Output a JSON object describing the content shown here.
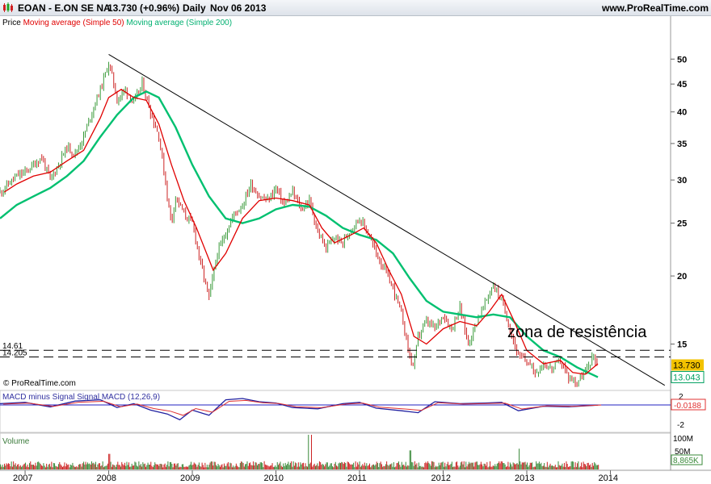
{
  "header": {
    "symbol": "EOAN - E.ON SE NA",
    "quote": "13.730 (+0.96%)",
    "period": "Daily",
    "date": "Nov 06 2013",
    "site": "www.ProRealTime.com"
  },
  "legend": {
    "price": "Price",
    "ma50": "Moving average (Simple 50)",
    "ma200": "Moving average (Simple 200)"
  },
  "colors": {
    "ma50": "#e00000",
    "ma200": "#00c070",
    "candle_up": "#3a9a3a",
    "candle_down": "#cc2222",
    "macd": "#2020a0",
    "macd_signal": "#e03030",
    "volume": "#3a8a3a",
    "last_price_bg": "#f2c200",
    "ma200_box": "#00a060"
  },
  "copyright": "© ProRealTime.com",
  "annotation": "zona de resistência",
  "macd_panel": {
    "label": "MACD minus Signal Signal MACD (12,26,9)",
    "value": "-0.0188",
    "ticks": [
      "2",
      "-2"
    ]
  },
  "volume_panel": {
    "label": "Volume",
    "ticks": [
      "100M",
      "50M"
    ],
    "value": "8,865K"
  },
  "chart_data": {
    "type": "candlestick",
    "y_scale": "log",
    "ylim": [
      12.5,
      56
    ],
    "price_ticks": [
      50,
      45,
      40,
      35,
      30,
      25,
      20,
      15
    ],
    "x_ticks": [
      "2007",
      "2008",
      "2009",
      "2010",
      "2011",
      "2012",
      "2013",
      "2014"
    ],
    "last_price": "13.730",
    "ma200_last": "13.043",
    "horizontal_levels": [
      {
        "label": "14.61",
        "value": 14.61
      },
      {
        "label": "14.205",
        "value": 14.205
      }
    ],
    "trendline": {
      "from": {
        "x": 2008.0,
        "y": 51
      },
      "to": {
        "x": 2014.65,
        "y": 12.6
      }
    },
    "price_points": [
      [
        2006.7,
        28.5
      ],
      [
        2006.8,
        29.5
      ],
      [
        2006.9,
        30.5
      ],
      [
        2007.0,
        31
      ],
      [
        2007.1,
        32
      ],
      [
        2007.2,
        33
      ],
      [
        2007.3,
        30
      ],
      [
        2007.4,
        32
      ],
      [
        2007.5,
        34.5
      ],
      [
        2007.6,
        33.5
      ],
      [
        2007.7,
        36
      ],
      [
        2007.8,
        40
      ],
      [
        2007.9,
        44
      ],
      [
        2008.0,
        49
      ],
      [
        2008.05,
        46
      ],
      [
        2008.1,
        42
      ],
      [
        2008.2,
        44
      ],
      [
        2008.3,
        41.5
      ],
      [
        2008.4,
        45
      ],
      [
        2008.5,
        40
      ],
      [
        2008.6,
        36
      ],
      [
        2008.7,
        28
      ],
      [
        2008.75,
        25
      ],
      [
        2008.8,
        28
      ],
      [
        2008.9,
        26
      ],
      [
        2009.0,
        25
      ],
      [
        2009.1,
        21
      ],
      [
        2009.2,
        18.2
      ],
      [
        2009.3,
        22
      ],
      [
        2009.4,
        24
      ],
      [
        2009.5,
        26
      ],
      [
        2009.6,
        27
      ],
      [
        2009.7,
        29.5
      ],
      [
        2009.8,
        28
      ],
      [
        2009.9,
        27.5
      ],
      [
        2010.0,
        29
      ],
      [
        2010.1,
        27
      ],
      [
        2010.2,
        28.5
      ],
      [
        2010.3,
        26.5
      ],
      [
        2010.4,
        27.5
      ],
      [
        2010.5,
        24
      ],
      [
        2010.6,
        22.5
      ],
      [
        2010.7,
        23.5
      ],
      [
        2010.8,
        23
      ],
      [
        2010.9,
        24.5
      ],
      [
        2011.0,
        25.5
      ],
      [
        2011.1,
        24
      ],
      [
        2011.2,
        22
      ],
      [
        2011.3,
        20.5
      ],
      [
        2011.4,
        19
      ],
      [
        2011.5,
        17
      ],
      [
        2011.6,
        14.2
      ],
      [
        2011.65,
        13.6
      ],
      [
        2011.7,
        15.5
      ],
      [
        2011.8,
        16.5
      ],
      [
        2011.9,
        16
      ],
      [
        2012.0,
        17
      ],
      [
        2012.1,
        16
      ],
      [
        2012.2,
        17.5
      ],
      [
        2012.3,
        15
      ],
      [
        2012.4,
        16.5
      ],
      [
        2012.5,
        17.8
      ],
      [
        2012.6,
        19.3
      ],
      [
        2012.7,
        18
      ],
      [
        2012.8,
        16
      ],
      [
        2012.9,
        14.2
      ],
      [
        2013.0,
        14
      ],
      [
        2013.1,
        13.3
      ],
      [
        2013.2,
        13.8
      ],
      [
        2013.3,
        13.5
      ],
      [
        2013.4,
        14
      ],
      [
        2013.5,
        13
      ],
      [
        2013.6,
        12.8
      ],
      [
        2013.7,
        13.3
      ],
      [
        2013.8,
        14.3
      ],
      [
        2013.85,
        13.73
      ]
    ],
    "ma50_points": [
      [
        2006.75,
        28.5
      ],
      [
        2006.9,
        29.5
      ],
      [
        2007.1,
        30.5
      ],
      [
        2007.3,
        31
      ],
      [
        2007.5,
        32.5
      ],
      [
        2007.7,
        34
      ],
      [
        2007.9,
        39
      ],
      [
        2008.0,
        42.5
      ],
      [
        2008.15,
        44
      ],
      [
        2008.3,
        42.5
      ],
      [
        2008.45,
        42
      ],
      [
        2008.6,
        38
      ],
      [
        2008.75,
        32
      ],
      [
        2008.9,
        27.5
      ],
      [
        2009.05,
        24.5
      ],
      [
        2009.25,
        20.5
      ],
      [
        2009.4,
        22
      ],
      [
        2009.6,
        25.5
      ],
      [
        2009.8,
        27.5
      ],
      [
        2010.0,
        27.8
      ],
      [
        2010.2,
        27.5
      ],
      [
        2010.4,
        27
      ],
      [
        2010.55,
        24.5
      ],
      [
        2010.7,
        23
      ],
      [
        2010.9,
        23.8
      ],
      [
        2011.05,
        24.5
      ],
      [
        2011.2,
        23
      ],
      [
        2011.35,
        20.5
      ],
      [
        2011.5,
        18.5
      ],
      [
        2011.65,
        15.5
      ],
      [
        2011.8,
        15
      ],
      [
        2012.0,
        16
      ],
      [
        2012.2,
        16.5
      ],
      [
        2012.4,
        16.2
      ],
      [
        2012.55,
        17.2
      ],
      [
        2012.7,
        18.5
      ],
      [
        2012.85,
        16.5
      ],
      [
        2013.0,
        14.6
      ],
      [
        2013.2,
        13.8
      ],
      [
        2013.4,
        14
      ],
      [
        2013.55,
        13.3
      ],
      [
        2013.7,
        13.2
      ],
      [
        2013.85,
        13.8
      ]
    ],
    "ma200_points": [
      [
        2006.7,
        25.5
      ],
      [
        2006.9,
        27
      ],
      [
        2007.1,
        28
      ],
      [
        2007.3,
        29
      ],
      [
        2007.5,
        30.5
      ],
      [
        2007.7,
        32.5
      ],
      [
        2007.9,
        36
      ],
      [
        2008.1,
        39.5
      ],
      [
        2008.3,
        42.5
      ],
      [
        2008.45,
        43.6
      ],
      [
        2008.6,
        42.5
      ],
      [
        2008.8,
        37.5
      ],
      [
        2009.0,
        32
      ],
      [
        2009.2,
        28
      ],
      [
        2009.4,
        25.5
      ],
      [
        2009.6,
        25
      ],
      [
        2009.8,
        25.5
      ],
      [
        2010.0,
        26.5
      ],
      [
        2010.2,
        27
      ],
      [
        2010.4,
        26.8
      ],
      [
        2010.6,
        25.8
      ],
      [
        2010.8,
        24.5
      ],
      [
        2011.0,
        23.8
      ],
      [
        2011.2,
        23.3
      ],
      [
        2011.4,
        22
      ],
      [
        2011.6,
        19.8
      ],
      [
        2011.8,
        18
      ],
      [
        2012.0,
        17.2
      ],
      [
        2012.2,
        17
      ],
      [
        2012.4,
        16.8
      ],
      [
        2012.6,
        17
      ],
      [
        2012.8,
        16.8
      ],
      [
        2013.0,
        15.5
      ],
      [
        2013.2,
        14.6
      ],
      [
        2013.4,
        14.2
      ],
      [
        2013.6,
        13.6
      ],
      [
        2013.85,
        13.04
      ]
    ],
    "macd_points": [
      [
        2006.7,
        0.2
      ],
      [
        2007.0,
        0.4
      ],
      [
        2007.3,
        -0.3
      ],
      [
        2007.6,
        0.6
      ],
      [
        2007.9,
        0.8
      ],
      [
        2008.1,
        -0.4
      ],
      [
        2008.3,
        0.2
      ],
      [
        2008.5,
        -0.8
      ],
      [
        2008.7,
        -1.4
      ],
      [
        2008.85,
        -2.3
      ],
      [
        2009.0,
        -0.8
      ],
      [
        2009.2,
        -1.6
      ],
      [
        2009.4,
        0.8
      ],
      [
        2009.6,
        1.0
      ],
      [
        2009.8,
        0.5
      ],
      [
        2010.0,
        0.3
      ],
      [
        2010.2,
        -0.4
      ],
      [
        2010.5,
        -0.6
      ],
      [
        2010.8,
        0.2
      ],
      [
        2011.0,
        0.4
      ],
      [
        2011.2,
        -0.5
      ],
      [
        2011.5,
        -0.9
      ],
      [
        2011.7,
        -1.2
      ],
      [
        2011.9,
        0.5
      ],
      [
        2012.2,
        0.2
      ],
      [
        2012.5,
        0.3
      ],
      [
        2012.7,
        0.4
      ],
      [
        2012.9,
        -0.9
      ],
      [
        2013.2,
        -0.2
      ],
      [
        2013.5,
        -0.3
      ],
      [
        2013.85,
        -0.02
      ]
    ],
    "volume_spikes": [
      {
        "x": 2010.38,
        "value": 100
      },
      {
        "x": 2010.42,
        "value": 100
      },
      {
        "x": 2008.0,
        "value": 45
      },
      {
        "x": 2011.6,
        "value": 55
      },
      {
        "x": 2012.9,
        "value": 60
      }
    ]
  }
}
